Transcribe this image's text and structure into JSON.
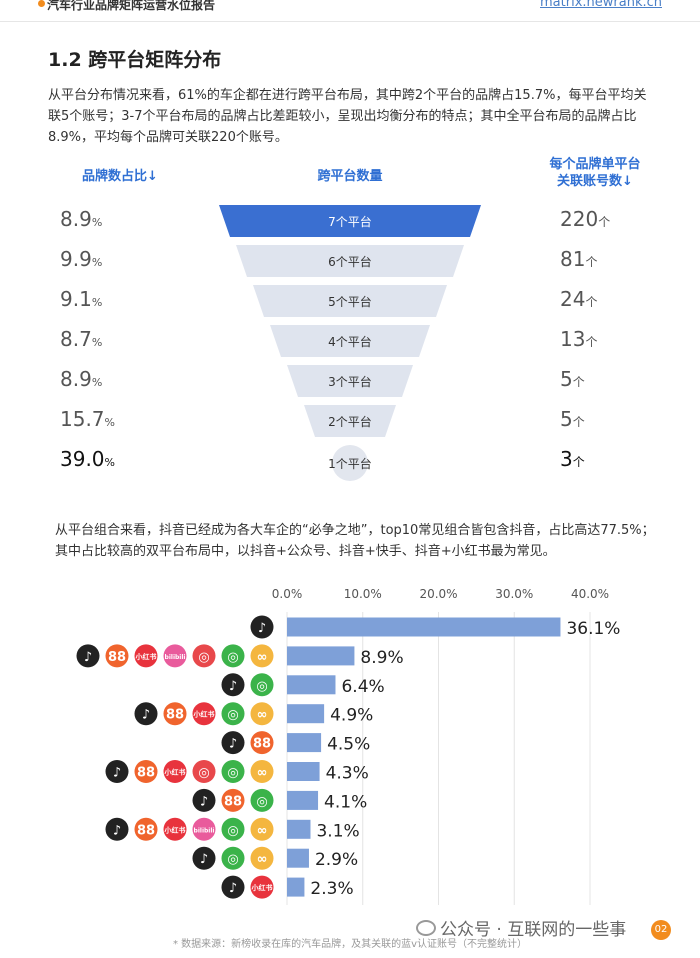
{
  "header": {
    "title": "汽车行业品牌矩阵运营水位报告",
    "site": "matrix.newrank.cn"
  },
  "section": {
    "title": "1.2 跨平台矩阵分布",
    "para1": "从平台分布情况来看，61%的车企都在进行跨平台布局，其中跨2个平台的品牌占15.7%，每平台平均关联5个账号；3-7个平台布局的品牌占比差距较小，呈现出均衡分布的特点；其中全平台布局的品牌占比8.9%，平均每个品牌可关联220个账号。",
    "para2": "从平台组合来看，抖音已经成为各大车企的“必争之地”，top10常见组合皆包含抖音，占比高达77.5%；其中占比较高的双平台布局中，以抖音+公众号、抖音+快手、抖音+小红书最为常见。"
  },
  "funnel": {
    "col_left": "品牌数占比↓",
    "col_mid": "跨平台数量",
    "col_right_line1": "每个品牌单平台",
    "col_right_line2": "关联账号数↓",
    "pct_unit": "%",
    "acc_unit": "个",
    "rows": [
      {
        "label": "7个平台",
        "pct": "8.9",
        "accounts": "220"
      },
      {
        "label": "6个平台",
        "pct": "9.9",
        "accounts": "81"
      },
      {
        "label": "5个平台",
        "pct": "9.1",
        "accounts": "24"
      },
      {
        "label": "4个平台",
        "pct": "8.7",
        "accounts": "13"
      },
      {
        "label": "3个平台",
        "pct": "8.9",
        "accounts": "5"
      },
      {
        "label": "2个平台",
        "pct": "15.7",
        "accounts": "5"
      },
      {
        "label": "1个平台",
        "pct": "39.0",
        "accounts": "3"
      }
    ],
    "colors": {
      "highlight": "#3a6fd1",
      "normal": "#dfe4ee",
      "circle": "#e2e6ee"
    }
  },
  "platform_icons": {
    "douyin": {
      "name": "douyin-icon",
      "glyph": "♪",
      "color": "#222222"
    },
    "kuaishou": {
      "name": "kuaishou-icon",
      "glyph": "88",
      "color": "#f0642d"
    },
    "xiaohongshu": {
      "name": "xiaohongshu-icon",
      "glyph": "小红书",
      "color": "#e8333d"
    },
    "bilibili": {
      "name": "bilibili-icon",
      "glyph": "bilibili",
      "color": "#e95b9c"
    },
    "weibo": {
      "name": "weibo-icon",
      "glyph": "◎",
      "color": "#e8484b"
    },
    "wechat": {
      "name": "wechat-official-icon",
      "glyph": "◎",
      "color": "#3bb34a"
    },
    "channels": {
      "name": "wechat-channels-icon",
      "glyph": "∞",
      "color": "#f4b63f"
    }
  },
  "chart_data": {
    "type": "bar",
    "orientation": "horizontal",
    "x_ticks": [
      "0.0%",
      "10.0%",
      "20.0%",
      "30.0%",
      "40.0%"
    ],
    "xlim": [
      0,
      40
    ],
    "grid": true,
    "bar_color": "#7ea0d8",
    "categories": [
      [
        "douyin"
      ],
      [
        "douyin",
        "kuaishou",
        "xiaohongshu",
        "bilibili",
        "weibo",
        "wechat",
        "channels"
      ],
      [
        "douyin",
        "wechat"
      ],
      [
        "douyin",
        "kuaishou",
        "xiaohongshu",
        "wechat",
        "channels"
      ],
      [
        "douyin",
        "kuaishou"
      ],
      [
        "douyin",
        "kuaishou",
        "xiaohongshu",
        "weibo",
        "wechat",
        "channels"
      ],
      [
        "douyin",
        "kuaishou",
        "wechat"
      ],
      [
        "douyin",
        "kuaishou",
        "xiaohongshu",
        "bilibili",
        "wechat",
        "channels"
      ],
      [
        "douyin",
        "wechat",
        "channels"
      ],
      [
        "douyin",
        "xiaohongshu"
      ]
    ],
    "values": [
      36.1,
      8.9,
      6.4,
      4.9,
      4.5,
      4.3,
      4.1,
      3.1,
      2.9,
      2.3
    ],
    "labels": [
      "36.1%",
      "8.9%",
      "6.4%",
      "4.9%",
      "4.5%",
      "4.3%",
      "4.1%",
      "3.1%",
      "2.9%",
      "2.3%"
    ]
  },
  "footer": {
    "footnote": "* 数据来源：新榜收录在库的汽车品牌，及其关联的蓝v认证账号（不完整统计）",
    "watermark": "公众号 · 互联网的一些事",
    "page": "02"
  }
}
